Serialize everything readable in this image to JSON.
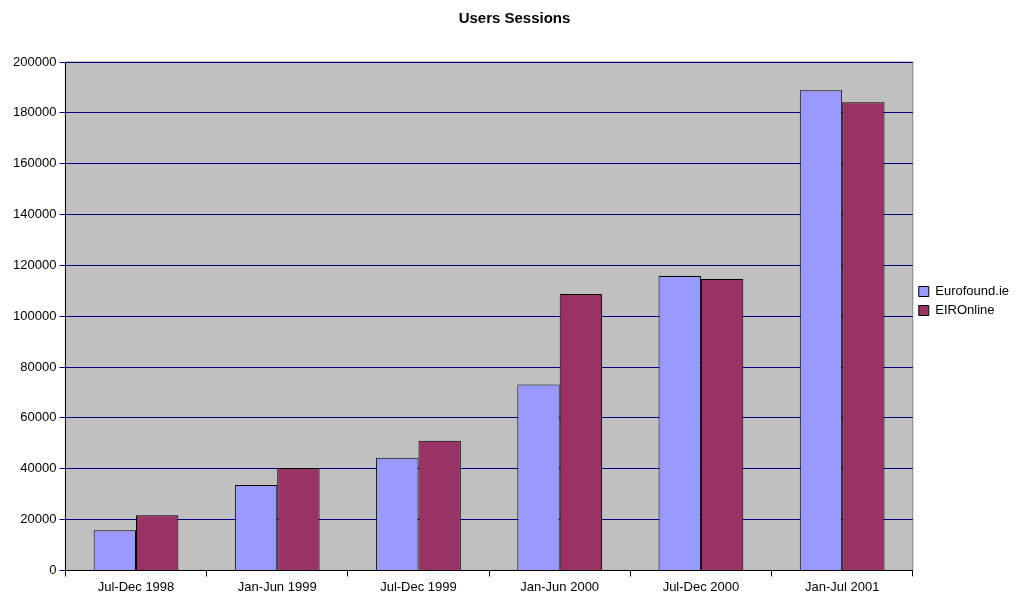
{
  "chart_data": {
    "type": "bar",
    "title": "Users Sessions",
    "categories": [
      "Jul-Dec 1998",
      "Jan-Jun 1999",
      "Jul-Dec 1999",
      "Jan-Jun 2000",
      "Jul-Dec 2000",
      "Jan-Jul 2001"
    ],
    "series": [
      {
        "name": "Eurofound.ie",
        "color": "#9999ff",
        "values": [
          15800,
          33600,
          44300,
          73100,
          115800,
          188900
        ]
      },
      {
        "name": "EIROnline",
        "color": "#993366",
        "values": [
          21700,
          40300,
          51000,
          108700,
          114600,
          184200
        ]
      }
    ],
    "ylim": [
      0,
      200000
    ],
    "yticks": [
      0,
      20000,
      40000,
      60000,
      80000,
      100000,
      120000,
      140000,
      160000,
      180000,
      200000
    ],
    "grid": "y",
    "legend": "right"
  }
}
